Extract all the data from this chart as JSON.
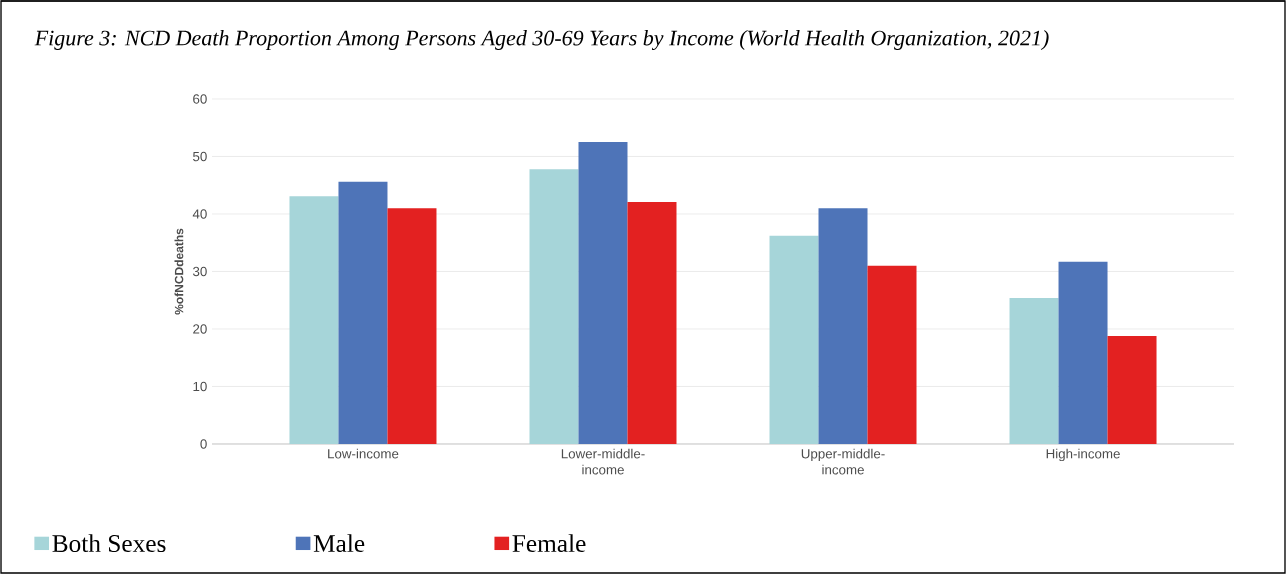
{
  "chart_data": {
    "type": "bar",
    "title": "Figure 3: NCD Death Proportion Among Persons Aged 30-69 Years by Income (World Health Organization, 2021)",
    "ylabel": "%ofNCDdeaths",
    "categories": [
      "Low-income",
      "Lower-middle-income",
      "Upper-middle-income",
      "High-income"
    ],
    "series": [
      {
        "name": "Both Sexes",
        "color": "#a6d5d9",
        "values": [
          43.1,
          47.8,
          36.2,
          25.4
        ]
      },
      {
        "name": "Male",
        "color": "#4e74b8",
        "values": [
          45.6,
          52.5,
          41.0,
          31.7
        ]
      },
      {
        "name": "Female",
        "color": "#e32121",
        "values": [
          41.0,
          42.1,
          31.0,
          18.8
        ]
      }
    ],
    "ylim": [
      0,
      60
    ],
    "yticks": [
      0,
      10,
      20,
      30,
      40,
      50,
      60
    ],
    "grid": "y",
    "legend": "bottom left"
  }
}
